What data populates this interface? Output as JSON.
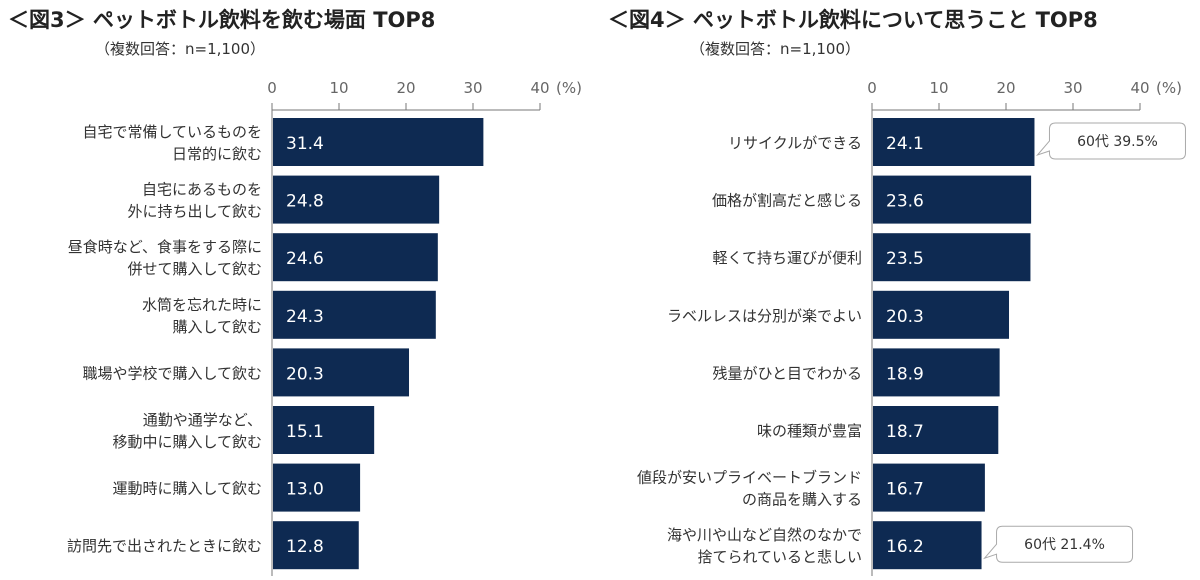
{
  "chart_data": [
    {
      "type": "bar",
      "orientation": "horizontal",
      "title": "＜図3＞ ペットボトル飲料を飲む場面 TOP8",
      "subtitle": "（複数回答：n=1,100）",
      "unit": "(%)",
      "xlim": [
        0,
        40
      ],
      "ticks": [
        "0",
        "10",
        "20",
        "30",
        "40"
      ],
      "bar_color": "#0e2a52",
      "categories": [
        "自宅で常備しているものを\n日常的に飲む",
        "自宅にあるものを\n外に持ち出して飲む",
        "昼食時など、食事をする際に\n併せて購入して飲む",
        "水筒を忘れた時に\n購入して飲む",
        "職場や学校で購入して飲む",
        "通勤や通学など、\n移動中に購入して飲む",
        "運動時に購入して飲む",
        "訪問先で出されたときに飲む"
      ],
      "values": [
        31.4,
        24.8,
        24.6,
        24.3,
        20.3,
        15.1,
        13.0,
        12.8
      ],
      "labels": [
        "31.4",
        "24.8",
        "24.6",
        "24.3",
        "20.3",
        "15.1",
        "13.0",
        "12.8"
      ],
      "annotations": []
    },
    {
      "type": "bar",
      "orientation": "horizontal",
      "title": "＜図4＞ ペットボトル飲料について思うこと TOP8",
      "subtitle": "（複数回答：n=1,100）",
      "unit": "(%)",
      "xlim": [
        0,
        40
      ],
      "ticks": [
        "0",
        "10",
        "20",
        "30",
        "40"
      ],
      "bar_color": "#0e2a52",
      "categories": [
        "リサイクルができる",
        "価格が割高だと感じる",
        "軽くて持ち運びが便利",
        "ラベルレスは分別が楽でよい",
        "残量がひと目でわかる",
        "味の種類が豊富",
        "値段が安いプライベートブランド\nの商品を購入する",
        "海や川や山など自然のなかで\n捨てられていると悲しい"
      ],
      "values": [
        24.1,
        23.6,
        23.5,
        20.3,
        18.9,
        18.7,
        16.7,
        16.2
      ],
      "labels": [
        "24.1",
        "23.6",
        "23.5",
        "20.3",
        "18.9",
        "18.7",
        "16.7",
        "16.2"
      ],
      "annotations": [
        {
          "row": 0,
          "text": "60代  39.5%"
        },
        {
          "row": 7,
          "text": "60代  21.4%"
        }
      ]
    }
  ]
}
